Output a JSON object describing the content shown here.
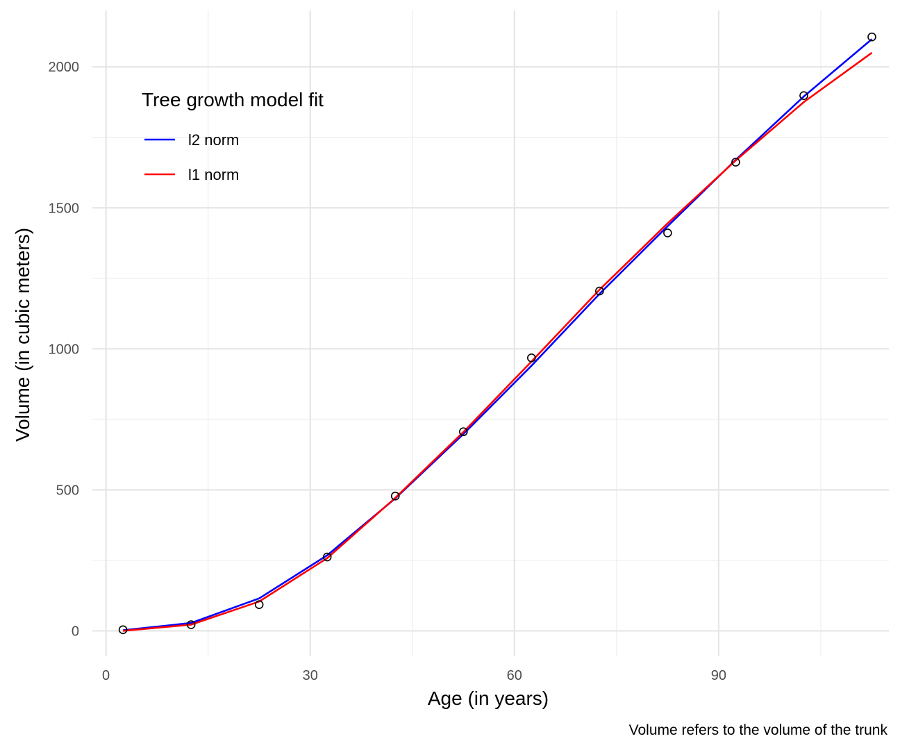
{
  "chart_data": {
    "type": "line",
    "title": "",
    "xlabel": "Age (in years)",
    "ylabel": "Volume (in cubic meters)",
    "caption": "Volume refers to the volume of the trunk",
    "xlim": [
      -2,
      115
    ],
    "ylim": [
      -90,
      2200
    ],
    "x_ticks": [
      0,
      30,
      60,
      90
    ],
    "x_minor_ticks": [
      15,
      45,
      75,
      105
    ],
    "y_ticks": [
      0,
      500,
      1000,
      1500,
      2000
    ],
    "y_minor_ticks": [
      250,
      750,
      1250,
      1750
    ],
    "grid": true,
    "legend": {
      "title": "Tree growth model fit",
      "placement": "top-left",
      "entries": [
        {
          "label": "l2 norm",
          "color": "#0000ff"
        },
        {
          "label": "l1 norm",
          "color": "#ff0000"
        }
      ]
    },
    "points": {
      "x": [
        2.5,
        12.5,
        22.5,
        32.5,
        42.5,
        52.5,
        62.5,
        72.5,
        82.5,
        92.5,
        102.5,
        112.5
      ],
      "y": [
        4,
        22,
        93,
        262,
        478,
        706,
        968,
        1205,
        1411,
        1662,
        1898,
        2106
      ],
      "stroke": "#000000"
    },
    "series": [
      {
        "name": "l2 norm",
        "color": "#0000ff",
        "x": [
          2.5,
          12.5,
          22.5,
          32.5,
          42.5,
          52.5,
          62.5,
          72.5,
          82.5,
          92.5,
          102.5,
          112.5
        ],
        "y": [
          2,
          28,
          115,
          268,
          470,
          698,
          940,
          1195,
          1435,
          1670,
          1895,
          2098
        ]
      },
      {
        "name": "l1 norm",
        "color": "#ff0000",
        "x": [
          2.5,
          12.5,
          22.5,
          32.5,
          42.5,
          52.5,
          62.5,
          72.5,
          82.5,
          92.5,
          102.5,
          112.5
        ],
        "y": [
          0,
          22,
          104,
          258,
          472,
          705,
          955,
          1210,
          1445,
          1668,
          1875,
          2050
        ]
      }
    ]
  }
}
